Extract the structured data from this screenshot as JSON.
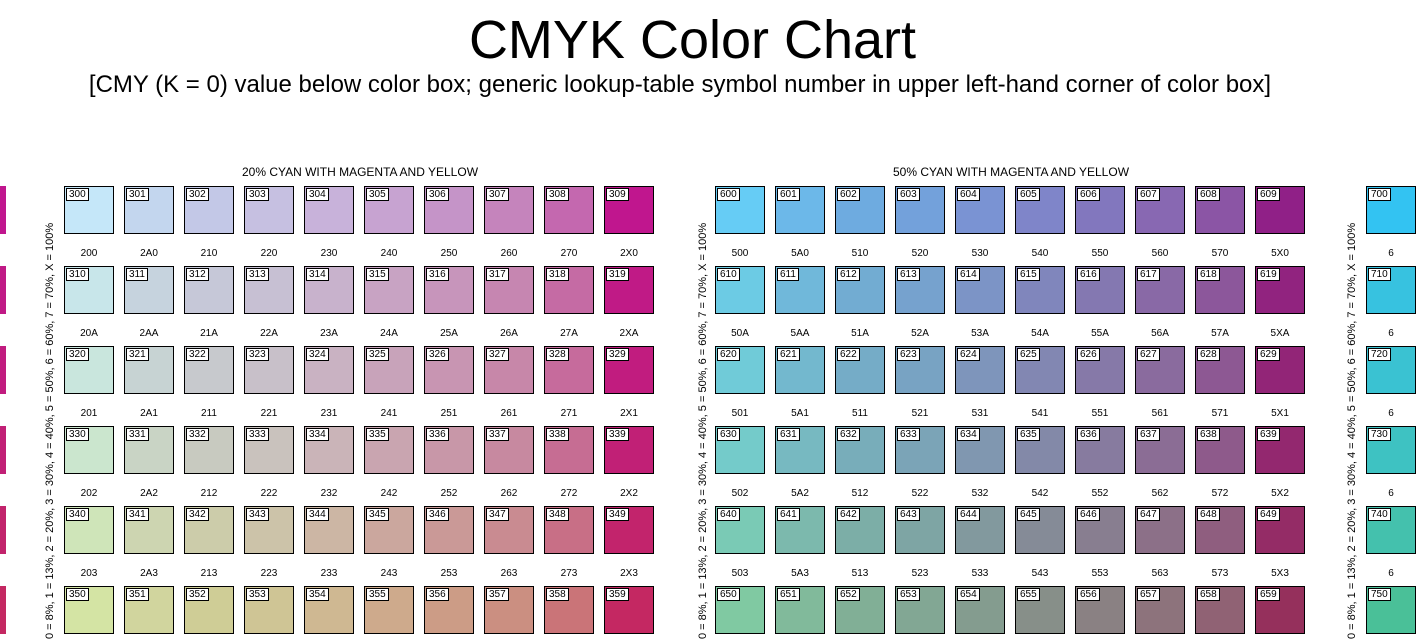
{
  "title": "CMYK Color Chart",
  "subtitle": "[CMY (K = 0) value below color box; generic lookup-table symbol number in upper left-hand corner of color box]",
  "chart_data": [
    {
      "type": "table",
      "title": "20% CYAN WITH MAGENTA AND YELLOW",
      "ylabel": "0 = 8%, 1 = 13%, 2 = 20%, 3 = 30%, 4 = 40%, 5 = 50%, 6 = 60%, 7 = 70%, X = 100%",
      "rows": [
        {
          "symbols": [
            "300",
            "301",
            "302",
            "303",
            "304",
            "305",
            "306",
            "307",
            "308",
            "309"
          ],
          "values": [
            "200",
            "2A0",
            "210",
            "220",
            "230",
            "240",
            "250",
            "260",
            "270",
            "2X0"
          ],
          "colors": [
            "#c5e7f9",
            "#c3d6ee",
            "#c3c8e7",
            "#c6c0e1",
            "#c8b2da",
            "#c7a3d1",
            "#c594c8",
            "#c584bc",
            "#c468af",
            "#c0168e"
          ]
        },
        {
          "symbols": [
            "310",
            "311",
            "312",
            "313",
            "314",
            "315",
            "316",
            "317",
            "318",
            "319"
          ],
          "values": [
            "20A",
            "2AA",
            "21A",
            "22A",
            "23A",
            "24A",
            "25A",
            "26A",
            "27A",
            "2XA"
          ],
          "colors": [
            "#c8e6ea",
            "#c6d3de",
            "#c6c8d8",
            "#c7c0d3",
            "#c8b2cc",
            "#c8a3c3",
            "#c795bb",
            "#c686b1",
            "#c56ba4",
            "#c01a86"
          ]
        },
        {
          "symbols": [
            "320",
            "321",
            "322",
            "323",
            "324",
            "325",
            "326",
            "327",
            "328",
            "329"
          ],
          "values": [
            "201",
            "2A1",
            "211",
            "221",
            "231",
            "241",
            "251",
            "261",
            "271",
            "2X1"
          ],
          "colors": [
            "#c9e6dd",
            "#c7d3d3",
            "#c7c9cd",
            "#c8c0c9",
            "#c9b2c2",
            "#c8a3ba",
            "#c895b2",
            "#c787a9",
            "#c66b9c",
            "#c11c7f"
          ]
        },
        {
          "symbols": [
            "330",
            "331",
            "332",
            "333",
            "334",
            "335",
            "336",
            "337",
            "338",
            "339"
          ],
          "values": [
            "202",
            "2A2",
            "212",
            "222",
            "232",
            "242",
            "252",
            "262",
            "272",
            "2X2"
          ],
          "colors": [
            "#cbe6ce",
            "#c9d4c5",
            "#c8cac0",
            "#c9c2bd",
            "#cab4b8",
            "#c9a5b0",
            "#c897a8",
            "#c789a0",
            "#c66d93",
            "#c12076"
          ]
        },
        {
          "symbols": [
            "340",
            "341",
            "342",
            "343",
            "344",
            "345",
            "346",
            "347",
            "348",
            "349"
          ],
          "values": [
            "203",
            "2A3",
            "213",
            "223",
            "233",
            "243",
            "253",
            "263",
            "273",
            "2X3"
          ],
          "colors": [
            "#cfe5b9",
            "#cdd5b1",
            "#ccccaa",
            "#ccc3a9",
            "#ccb6a4",
            "#cba79e",
            "#ca9997",
            "#c98b91",
            "#c86f86",
            "#c2246c"
          ]
        },
        {
          "symbols": [
            "350",
            "351",
            "352",
            "353",
            "354",
            "355",
            "356",
            "357",
            "358",
            "359"
          ],
          "values": [
            "",
            "",
            "",
            "",
            "",
            "",
            "",
            "",
            "",
            ""
          ],
          "colors": [
            "#d4e4a4",
            "#d1d59e",
            "#cfcd96",
            "#cfc595",
            "#cfb892",
            "#ceaa8c",
            "#cc9c86",
            "#cb8f81",
            "#ca7478",
            "#c42862"
          ]
        }
      ]
    },
    {
      "type": "table",
      "title": "50% CYAN WITH MAGENTA AND YELLOW",
      "ylabel": "0 = 8%, 1 = 13%, 2 = 20%, 3 = 30%, 4 = 40%, 5 = 50%, 6 = 60%, 7 = 70%, X = 100%",
      "rows": [
        {
          "symbols": [
            "600",
            "601",
            "602",
            "603",
            "604",
            "605",
            "606",
            "607",
            "608",
            "609"
          ],
          "values": [
            "500",
            "5A0",
            "510",
            "520",
            "530",
            "540",
            "550",
            "560",
            "570",
            "5X0"
          ],
          "colors": [
            "#66ccf5",
            "#6cb8e9",
            "#6eabe0",
            "#73a1db",
            "#7a93d3",
            "#7f85c9",
            "#8277be",
            "#8868b2",
            "#8b55a5",
            "#902087"
          ]
        },
        {
          "symbols": [
            "610",
            "611",
            "612",
            "613",
            "614",
            "615",
            "616",
            "617",
            "618",
            "619"
          ],
          "values": [
            "50A",
            "5AA",
            "51A",
            "52A",
            "53A",
            "54A",
            "55A",
            "56A",
            "57A",
            "5XA"
          ],
          "colors": [
            "#6ccbe4",
            "#70b8da",
            "#72acd2",
            "#76a2ce",
            "#7c94c6",
            "#8086bc",
            "#8478b1",
            "#8969a6",
            "#8c579b",
            "#91237f"
          ]
        },
        {
          "symbols": [
            "620",
            "621",
            "622",
            "623",
            "624",
            "625",
            "626",
            "627",
            "628",
            "629"
          ],
          "values": [
            "501",
            "5A1",
            "511",
            "521",
            "531",
            "541",
            "551",
            "561",
            "571",
            "5X1"
          ],
          "colors": [
            "#70cbd8",
            "#73b8ce",
            "#75acc7",
            "#78a3c3",
            "#7e95bb",
            "#8287b2",
            "#8679a8",
            "#8a6b9e",
            "#8d5893",
            "#922577"
          ]
        },
        {
          "symbols": [
            "630",
            "631",
            "632",
            "633",
            "634",
            "635",
            "636",
            "637",
            "638",
            "639"
          ],
          "values": [
            "502",
            "5A2",
            "512",
            "522",
            "532",
            "542",
            "552",
            "562",
            "572",
            "5X2"
          ],
          "colors": [
            "#74cbca",
            "#77b9c1",
            "#78adba",
            "#7ba4b7",
            "#8097b0",
            "#8389a8",
            "#877b9f",
            "#8b6d95",
            "#8e5a8b",
            "#93286f"
          ]
        },
        {
          "symbols": [
            "640",
            "641",
            "642",
            "643",
            "644",
            "645",
            "646",
            "647",
            "648",
            "649"
          ],
          "values": [
            "503",
            "5A3",
            "513",
            "523",
            "533",
            "543",
            "553",
            "563",
            "573",
            "5X3"
          ],
          "colors": [
            "#7acab5",
            "#7cb9ad",
            "#7caea7",
            "#7ea5a4",
            "#82999e",
            "#858b97",
            "#887e90",
            "#8c7088",
            "#8f5e7f",
            "#942c66"
          ]
        },
        {
          "symbols": [
            "650",
            "651",
            "652",
            "653",
            "654",
            "655",
            "656",
            "657",
            "658",
            "659"
          ],
          "values": [
            "",
            "",
            "",
            "",
            "",
            "",
            "",
            "",
            "",
            ""
          ],
          "colors": [
            "#80c9a2",
            "#81ba9b",
            "#81af96",
            "#82a794",
            "#849c8f",
            "#878f89",
            "#8a8183",
            "#8d737c",
            "#906274",
            "#95305c"
          ]
        }
      ]
    },
    {
      "type": "table",
      "partial": true,
      "rows": [
        {
          "symbols": [
            "700"
          ],
          "values": [
            "6"
          ],
          "colors": [
            "#33c3f2"
          ]
        },
        {
          "symbols": [
            "710"
          ],
          "values": [
            "6"
          ],
          "colors": [
            "#37c2e0"
          ]
        },
        {
          "symbols": [
            "720"
          ],
          "values": [
            "6"
          ],
          "colors": [
            "#3ac2d2"
          ]
        },
        {
          "symbols": [
            "730"
          ],
          "values": [
            "6"
          ],
          "colors": [
            "#3ec2c2"
          ]
        },
        {
          "symbols": [
            "740"
          ],
          "values": [
            "6"
          ],
          "colors": [
            "#44c1ad"
          ]
        },
        {
          "symbols": [
            "750"
          ],
          "values": [
            ""
          ],
          "colors": [
            "#4ac098"
          ]
        }
      ]
    }
  ],
  "left_edge_colors": [
    "#c0168e",
    "#c01a86",
    "#c11c7f",
    "#c12076",
    "#c2246c",
    "#c42862"
  ]
}
